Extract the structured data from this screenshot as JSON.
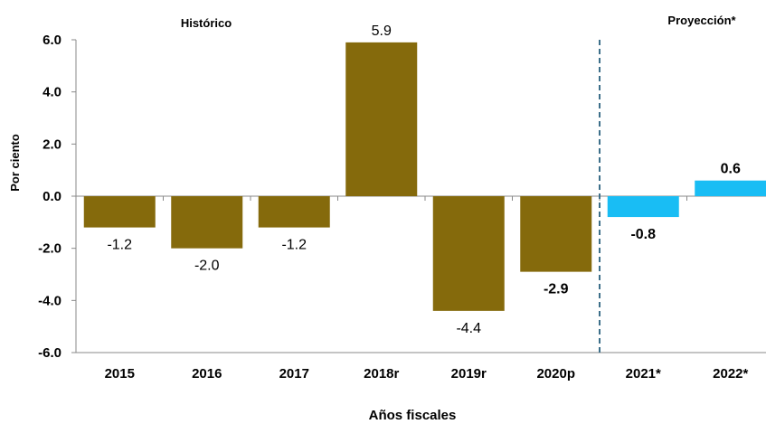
{
  "chart_data": {
    "type": "bar",
    "categories": [
      "2015",
      "2016",
      "2017",
      "2018r",
      "2019r",
      "2020p",
      "2021*",
      "2022*"
    ],
    "values": [
      -1.2,
      -2.0,
      -1.2,
      5.9,
      -4.4,
      -2.9,
      -0.8,
      0.6
    ],
    "value_labels": [
      "-1.2",
      "-2.0",
      "-1.2",
      "5.9",
      "-4.4",
      "-2.9",
      "-0.8",
      "0.6"
    ],
    "label_bold": [
      false,
      false,
      false,
      false,
      false,
      true,
      true,
      true
    ],
    "bar_colors": [
      "#856a0c",
      "#856a0c",
      "#856a0c",
      "#856a0c",
      "#856a0c",
      "#856a0c",
      "#19bdf4",
      "#19bdf4"
    ],
    "ylim": [
      -6.0,
      6.0
    ],
    "yticks": [
      -6.0,
      -4.0,
      -2.0,
      0.0,
      2.0,
      4.0,
      6.0
    ],
    "ytick_labels": [
      "-6.0",
      "-4.0",
      "-2.0",
      "0.0",
      "2.0",
      "4.0",
      "6.0"
    ],
    "xlabel": "Años fiscales",
    "ylabel": "Por ciento",
    "sections": [
      {
        "label": "Histórico"
      },
      {
        "label": "Proyección*"
      }
    ],
    "divider_after_category_index": 5,
    "colors": {
      "historic": "#856a0c",
      "projection": "#19bdf4",
      "divider": "#3d6f8a",
      "axis": "#888888"
    }
  }
}
